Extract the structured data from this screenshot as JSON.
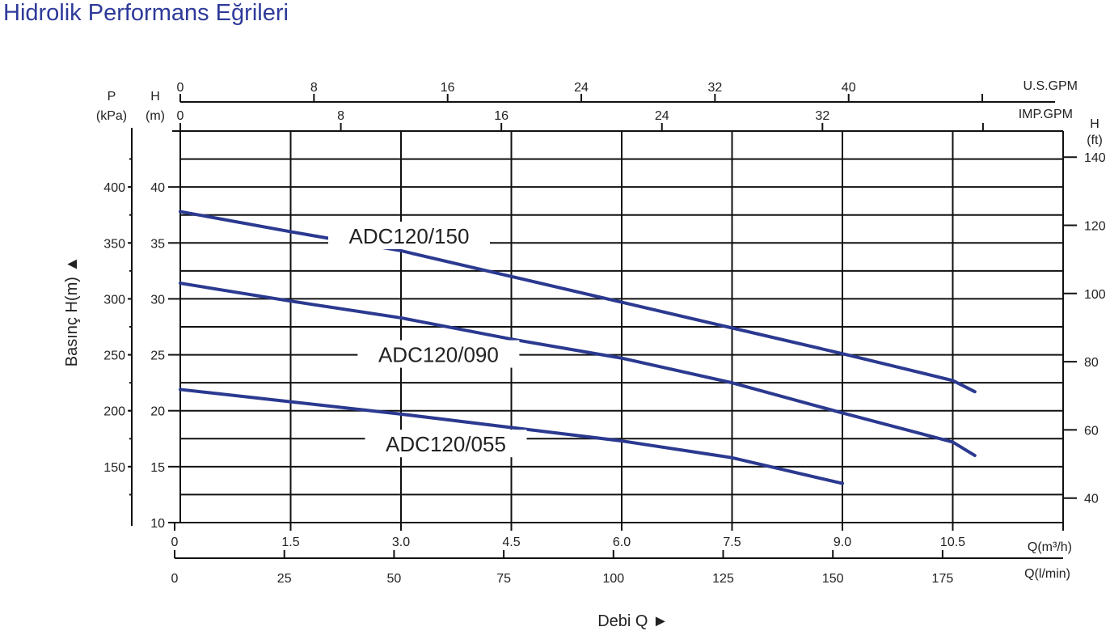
{
  "title": "Hidrolik Performans Eğrileri",
  "colors": {
    "curve": "#2b3990",
    "title": "#2e3a9a",
    "grid": "#111111"
  },
  "chart_data": {
    "type": "line",
    "title": "Hidrolik Performans Eğrileri",
    "xlabel": "Debi Q ►",
    "ylabel": "Basınç H(m) ▲",
    "xlim": [
      0,
      12
    ],
    "ylim": [
      10,
      45
    ],
    "grid": true,
    "x_ticks": [
      "0",
      "1.5",
      "3.0",
      "4.5",
      "6.0",
      "7.5",
      "9.0",
      "10.5"
    ],
    "x_unit": "Q(m³/h)",
    "lmin_axis": {
      "unit": "Q(l/min)",
      "ticks": [
        "0",
        "25",
        "50",
        "75",
        "100",
        "125",
        "150",
        "175"
      ]
    },
    "usgpm_axis": {
      "unit": "U.S.GPM",
      "ticks": [
        "0",
        "8",
        "16",
        "24",
        "32",
        "40",
        ""
      ]
    },
    "impgpm_axis": {
      "unit": "IMP.GPM",
      "ticks": [
        "0",
        "8",
        "16",
        "24",
        "32",
        ""
      ]
    },
    "h_axis": {
      "unit_top": "H",
      "unit_bottom": "(m)",
      "ticks": [
        "10",
        "15",
        "20",
        "25",
        "30",
        "35",
        "40"
      ]
    },
    "p_axis": {
      "unit_top": "P",
      "unit_bottom": "(kPa)",
      "ticks": [
        "150",
        "200",
        "250",
        "300",
        "350",
        "400"
      ]
    },
    "ft_axis": {
      "unit_top": "H",
      "unit_bottom": "(ft)",
      "ticks": [
        "40",
        "60",
        "80",
        "100",
        "120",
        "140"
      ]
    },
    "series": [
      {
        "name": "ADC120/150",
        "x": [
          0,
          1.5,
          3.0,
          4.5,
          6.0,
          7.5,
          9.0,
          10.5,
          10.8
        ],
        "y": [
          37.8,
          36.0,
          34.3,
          32.0,
          29.7,
          27.4,
          25.1,
          22.7,
          21.7
        ],
        "label_at": [
          3.0,
          35.6
        ]
      },
      {
        "name": "ADC120/090",
        "x": [
          0,
          1.5,
          3.0,
          4.5,
          6.0,
          7.5,
          9.0,
          10.5,
          10.8
        ],
        "y": [
          31.4,
          29.8,
          28.3,
          26.4,
          24.7,
          22.5,
          19.8,
          17.2,
          16.0
        ],
        "label_at": [
          3.4,
          25.0
        ]
      },
      {
        "name": "ADC120/055",
        "x": [
          0,
          1.5,
          3.0,
          4.5,
          6.0,
          7.5,
          9.0
        ],
        "y": [
          21.9,
          20.8,
          19.7,
          18.5,
          17.3,
          15.8,
          13.5
        ],
        "label_at": [
          3.5,
          17.0
        ]
      }
    ]
  }
}
